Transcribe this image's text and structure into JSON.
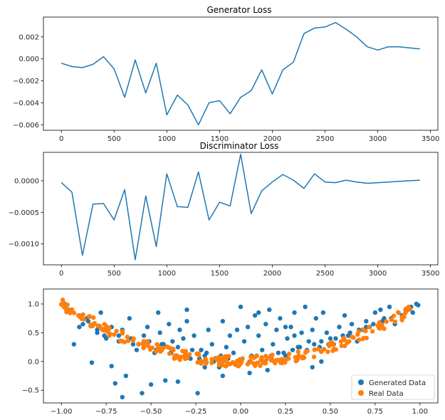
{
  "chart_data": [
    {
      "type": "line",
      "title": "Generator Loss",
      "xlabel": "",
      "ylabel": "",
      "xlim": [
        -170,
        3570
      ],
      "ylim": [
        -0.0065,
        0.0038
      ],
      "xticks": [
        0,
        500,
        1000,
        1500,
        2000,
        2500,
        3000,
        3500
      ],
      "xtick_labels": [
        "0",
        "500",
        "1000",
        "1500",
        "2000",
        "2500",
        "3000",
        "3500"
      ],
      "yticks": [
        -0.006,
        -0.004,
        -0.002,
        0.0,
        0.002
      ],
      "ytick_labels": [
        "−0.006",
        "−0.004",
        "−0.002",
        "0.000",
        "0.002"
      ],
      "color": "#1f77b4",
      "x": [
        0,
        100,
        200,
        300,
        400,
        500,
        600,
        700,
        800,
        900,
        1000,
        1100,
        1200,
        1300,
        1400,
        1500,
        1600,
        1700,
        1800,
        1900,
        2000,
        2100,
        2200,
        2300,
        2400,
        2500,
        2600,
        2700,
        2800,
        2900,
        3000,
        3100,
        3200,
        3300,
        3400
      ],
      "y": [
        -0.0004,
        -0.0007,
        -0.0008,
        -0.0005,
        0.0002,
        -0.0009,
        -0.0035,
        -0.0001,
        -0.0031,
        -0.0004,
        -0.0051,
        -0.0033,
        -0.0042,
        -0.006,
        -0.004,
        -0.0038,
        -0.005,
        -0.0035,
        -0.0029,
        -0.001,
        -0.0032,
        -0.001,
        -0.0003,
        0.0023,
        0.0028,
        0.0029,
        0.0033,
        0.0027,
        0.002,
        0.0011,
        0.0008,
        0.0011,
        0.0011,
        0.001,
        0.0009
      ]
    },
    {
      "type": "line",
      "title": "Discriminator Loss",
      "xlabel": "",
      "ylabel": "",
      "xlim": [
        -170,
        3570
      ],
      "ylim": [
        -0.00133,
        0.00045
      ],
      "xticks": [
        0,
        500,
        1000,
        1500,
        2000,
        2500,
        3000,
        3500
      ],
      "xtick_labels": [
        "0",
        "500",
        "1000",
        "1500",
        "2000",
        "2500",
        "3000",
        "3500"
      ],
      "yticks": [
        -0.001,
        -0.0005,
        0.0
      ],
      "ytick_labels": [
        "−0.0010",
        "−0.0005",
        "0.0000"
      ],
      "color": "#1f77b4",
      "x": [
        0,
        100,
        200,
        300,
        400,
        500,
        600,
        700,
        800,
        900,
        1000,
        1100,
        1200,
        1300,
        1400,
        1500,
        1600,
        1700,
        1800,
        1900,
        2000,
        2100,
        2200,
        2300,
        2400,
        2500,
        2600,
        2700,
        2800,
        2900,
        3000,
        3100,
        3200,
        3300,
        3400
      ],
      "y": [
        -3e-05,
        -0.00018,
        -0.00118,
        -0.00037,
        -0.00036,
        -0.00062,
        -0.00014,
        -0.00125,
        -0.00024,
        -0.00104,
        0.00011,
        -0.00041,
        -0.00042,
        0.00014,
        -0.00062,
        -0.00034,
        -0.0004,
        0.00042,
        -0.00052,
        -0.00016,
        -2e-05,
        0.0001,
        1e-05,
        -0.00012,
        0.00011,
        -2e-05,
        -3e-05,
        1e-05,
        -2e-05,
        -4e-05,
        -3e-05,
        -2e-05,
        -1e-05,
        0.0,
        1e-05
      ]
    },
    {
      "type": "scatter",
      "title": "",
      "xlabel": "",
      "ylabel": "",
      "xlim": [
        -1.1,
        1.1
      ],
      "ylim": [
        -0.72,
        1.26
      ],
      "xticks": [
        -1.0,
        -0.75,
        -0.5,
        -0.25,
        0.0,
        0.25,
        0.5,
        0.75,
        1.0
      ],
      "xtick_labels": [
        "−1.00",
        "−0.75",
        "−0.50",
        "−0.25",
        "0.00",
        "0.25",
        "0.50",
        "0.75",
        "1.00"
      ],
      "yticks": [
        -0.5,
        0.0,
        0.5,
        1.0
      ],
      "ytick_labels": [
        "−0.5",
        "0.0",
        "0.5",
        "1.0"
      ],
      "legend_position": "bottom-right",
      "series": [
        {
          "name": "Generated Data",
          "color": "#1f77b4",
          "x": [
            -0.98,
            -0.96,
            -0.93,
            -0.9,
            -0.88,
            -0.85,
            -0.83,
            -0.8,
            -0.78,
            -0.75,
            -0.72,
            -0.7,
            -0.68,
            -0.66,
            -0.64,
            -0.62,
            -0.6,
            -0.58,
            -0.55,
            -0.52,
            -0.5,
            -0.48,
            -0.46,
            -0.44,
            -0.42,
            -0.4,
            -0.38,
            -0.36,
            -0.34,
            -0.32,
            -0.3,
            -0.28,
            -0.26,
            -0.24,
            -0.22,
            -0.2,
            -0.18,
            -0.16,
            -0.14,
            -0.12,
            -0.1,
            -0.08,
            -0.06,
            -0.04,
            -0.02,
            0.0,
            0.02,
            0.04,
            0.06,
            0.08,
            0.1,
            0.12,
            0.14,
            0.16,
            0.18,
            0.2,
            0.22,
            0.24,
            0.26,
            0.28,
            0.3,
            0.32,
            0.34,
            0.36,
            0.38,
            0.4,
            0.42,
            0.44,
            0.46,
            0.48,
            0.5,
            0.52,
            0.55,
            0.58,
            0.6,
            0.62,
            0.65,
            0.68,
            0.7,
            0.72,
            0.75,
            0.78,
            0.8,
            0.83,
            0.86,
            0.9,
            0.93,
            0.96,
            0.99,
            -0.9,
            -0.86,
            -0.8,
            -0.76,
            -0.72,
            -0.68,
            -0.66,
            -0.61,
            -0.57,
            -0.54,
            -0.51,
            -0.47,
            -0.43,
            -0.39,
            -0.35,
            -0.3,
            -0.27,
            -0.23,
            -0.19,
            -0.15,
            -0.11,
            -0.07,
            -0.03,
            0.01,
            0.05,
            0.09,
            0.13,
            0.17,
            0.21,
            0.25,
            0.29,
            0.33,
            0.37,
            0.41,
            0.45,
            0.49,
            0.53,
            0.57,
            0.61,
            0.66,
            0.7,
            0.74,
            0.79,
            0.84,
            0.88,
            0.92,
            0.95,
            0.98,
            -0.45,
            -0.2,
            0.15,
            0.4,
            -0.3,
            0.05,
            0.3,
            -0.1,
            0.25,
            -0.35,
            0.1,
            0.45
          ],
          "y": [
            0.95,
            0.9,
            0.3,
            0.8,
            0.65,
            0.7,
            -0.02,
            0.5,
            0.85,
            0.4,
            -0.08,
            -0.38,
            0.45,
            -0.62,
            -0.25,
            0.75,
            0.3,
            0.2,
            -0.55,
            0.6,
            -0.4,
            0.15,
            0.85,
            0.3,
            -0.33,
            0.65,
            0.35,
            0.1,
            0.55,
            0.4,
            0.9,
            0.05,
            0.45,
            -0.55,
            0.2,
            -0.1,
            0.55,
            0.3,
            0.05,
            -0.1,
            0.7,
            0.25,
            0.45,
            0.15,
            0.55,
            0.95,
            0.35,
            0.6,
            0.1,
            0.8,
            0.45,
            0.2,
            0.65,
            0.9,
            0.3,
            0.55,
            0.75,
            0.15,
            0.4,
            0.6,
            0.85,
            0.25,
            0.5,
            0.95,
            0.35,
            0.55,
            0.75,
            0.25,
            0.85,
            0.5,
            0.4,
            0.3,
            0.6,
            0.8,
            0.45,
            0.65,
            0.35,
            0.55,
            0.7,
            0.6,
            0.85,
            0.9,
            0.75,
            0.95,
            0.65,
            0.8,
            0.9,
            0.85,
            0.98,
            0.6,
            0.75,
            0.55,
            0.45,
            0.6,
            0.35,
            0.55,
            0.4,
            0.3,
            0.45,
            0.35,
            0.2,
            0.3,
            0.15,
            0.25,
            0.1,
            0.2,
            0.05,
            0.15,
            0.0,
            0.1,
            0.05,
            -0.05,
            0.05,
            0.0,
            0.1,
            0.0,
            0.1,
            0.15,
            0.1,
            0.2,
            0.25,
            0.2,
            0.3,
            0.35,
            0.3,
            0.4,
            0.45,
            0.5,
            0.55,
            0.6,
            0.65,
            0.7,
            0.75,
            0.85,
            0.9,
            0.95,
            1.0,
            0.5,
            0.1,
            -0.15,
            -0.1,
            0.7,
            -0.2,
            0.45,
            -0.25,
            0.6,
            -0.35,
            0.85,
            0.0
          ]
        },
        {
          "name": "Real Data",
          "color": "#ff7f0e",
          "formula": "y = x^2 + noise",
          "noise_amplitude": 0.09,
          "n_points": 260,
          "x_range": [
            -1.0,
            1.0
          ]
        }
      ]
    }
  ]
}
